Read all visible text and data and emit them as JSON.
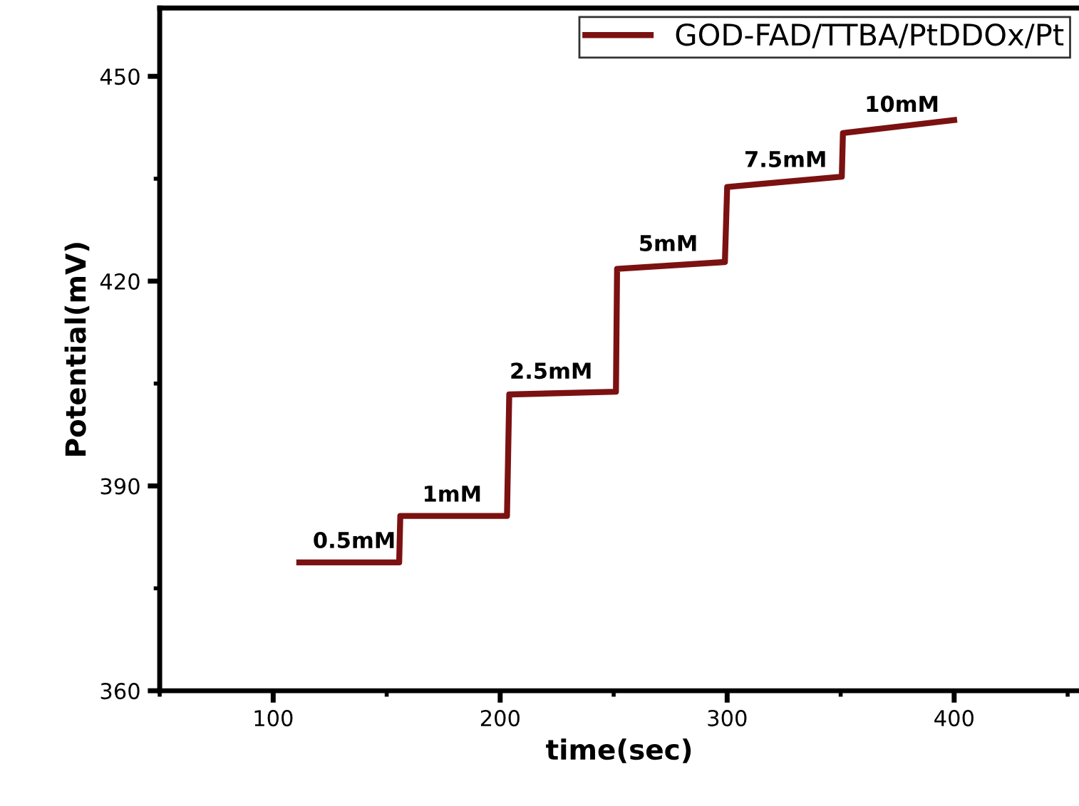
{
  "chart_data": {
    "type": "line",
    "xlabel": "time(sec)",
    "ylabel": "Potential(mV)",
    "series": [
      {
        "name": "GOD-FAD/TTBA/PtDDOx/Pt",
        "color": "#7b1111",
        "x": [
          111.5,
          155.5,
          156,
          203,
          204,
          251,
          251.5,
          299,
          300,
          350.5,
          351,
          400
        ],
        "values": [
          378.8,
          378.8,
          385.6,
          385.6,
          403.4,
          403.8,
          421.8,
          422.8,
          433.8,
          435.3,
          441.7,
          443.6
        ]
      }
    ],
    "xlim": [
      50,
      455
    ],
    "ylim": [
      360,
      460
    ],
    "xticks": [
      {
        "value": 50,
        "label": null
      },
      100,
      {
        "value": 150,
        "label": null
      },
      200,
      {
        "value": 250,
        "label": null
      },
      300,
      {
        "value": 350,
        "label": null
      },
      400,
      {
        "value": 450,
        "label": null
      }
    ],
    "yticks": [
      360,
      {
        "value": 375,
        "label": null
      },
      390,
      {
        "value": 405,
        "label": null
      },
      420,
      {
        "value": 435,
        "label": null
      },
      450
    ],
    "annotations": [
      {
        "text": "0.5mM",
        "x": 135.7,
        "y": 378.8
      },
      {
        "text": "1mM",
        "x": 178.8,
        "y": 385.6
      },
      {
        "text": "2.5mM",
        "x": 222.4,
        "y": 403.6
      },
      {
        "text": "5mM",
        "x": 274,
        "y": 422.3
      },
      {
        "text": "7.5mM",
        "x": 325.7,
        "y": 434.6
      },
      {
        "text": "10mM",
        "x": 377,
        "y": 442.7
      }
    ],
    "grid": false,
    "legend": "top right",
    "marker": "none",
    "line_style": "solid"
  }
}
